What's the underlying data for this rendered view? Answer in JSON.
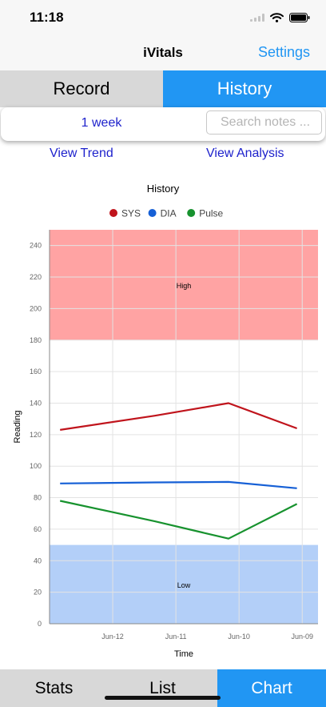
{
  "status": {
    "time": "11:18"
  },
  "nav": {
    "title": "iVitals",
    "settings_label": "Settings"
  },
  "segments": {
    "record_label": "Record",
    "history_label": "History"
  },
  "filter": {
    "period_label": "1 week",
    "search_placeholder": "Search notes ..."
  },
  "links": {
    "trend_label": "View Trend",
    "analysis_label": "View Analysis"
  },
  "tabs": {
    "stats_label": "Stats",
    "list_label": "List",
    "chart_label": "Chart"
  },
  "chart_data": {
    "type": "line",
    "title": "History",
    "xlabel": "Time",
    "ylabel": "Reading",
    "ylim": [
      0,
      250
    ],
    "yticks": [
      0,
      20,
      40,
      60,
      80,
      100,
      120,
      140,
      160,
      180,
      200,
      220,
      240
    ],
    "x": [
      "2022-06-12T20:00",
      "2022-06-11T08:00",
      "2022-06-10T04:00",
      "2022-06-09T02:00"
    ],
    "xticks": [
      "Jun-12",
      "Jun-11",
      "Jun-10",
      "Jun-09"
    ],
    "x_reversed": true,
    "series": [
      {
        "name": "SYS",
        "color": "#c0141c",
        "values": [
          123,
          132,
          140,
          124
        ]
      },
      {
        "name": "DIA",
        "color": "#1660d6",
        "values": [
          89,
          89.7,
          90,
          86
        ]
      },
      {
        "name": "Pulse",
        "color": "#17922e",
        "values": [
          78,
          65,
          54,
          76
        ]
      }
    ],
    "bands": [
      {
        "label": "High",
        "from": 180,
        "to": 250,
        "color": "#ffa3a3"
      },
      {
        "label": "Low",
        "from": 0,
        "to": 50,
        "color": "#b3cff8"
      }
    ],
    "legend": "top",
    "grid": true
  }
}
